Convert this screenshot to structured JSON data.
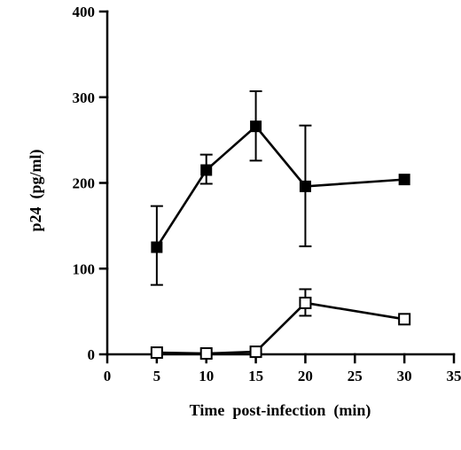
{
  "chart_data": {
    "type": "line",
    "title": "",
    "xlabel": "Time  post-infection  (min)",
    "ylabel": "p24  (pg/ml)",
    "xlim": [
      0,
      35
    ],
    "ylim": [
      0,
      400
    ],
    "xticks": [
      0,
      5,
      10,
      15,
      20,
      25,
      30,
      35
    ],
    "yticks": [
      0,
      100,
      200,
      300,
      400
    ],
    "grid": false,
    "legend": "none",
    "series": [
      {
        "marker": "filled-square",
        "color": "#000000",
        "points": [
          {
            "x": 5,
            "y": 125,
            "err_high": 173,
            "err_low": 81
          },
          {
            "x": 10,
            "y": 215,
            "err_high": 233,
            "err_low": 199
          },
          {
            "x": 15,
            "y": 266,
            "err_high": 307,
            "err_low": 226
          },
          {
            "x": 20,
            "y": 196,
            "err_high": 267,
            "err_low": 126
          },
          {
            "x": 30,
            "y": 204
          }
        ]
      },
      {
        "marker": "open-square",
        "color": "#000000",
        "points": [
          {
            "x": 5,
            "y": 2
          },
          {
            "x": 10,
            "y": 1
          },
          {
            "x": 15,
            "y": 3
          },
          {
            "x": 20,
            "y": 60,
            "err_high": 76,
            "err_low": 45
          },
          {
            "x": 30,
            "y": 41
          }
        ]
      }
    ]
  }
}
